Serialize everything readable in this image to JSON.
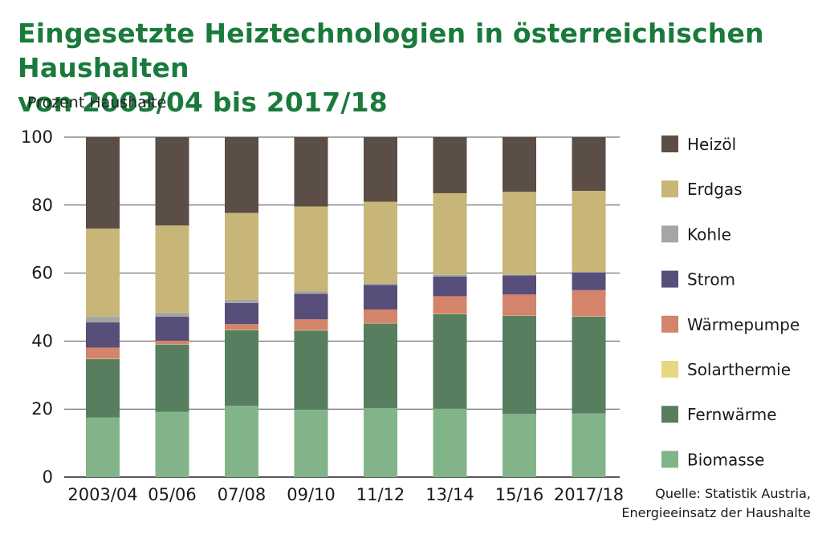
{
  "chart_data": {
    "type": "bar",
    "stacked": true,
    "title_line1": "Eingesetzte Heiztechnologien in österreichischen Haushalten",
    "title_line2": "von 2003/04 bis 2017/18",
    "ylabel": "Prozent Haushalte",
    "xlabel": "",
    "ylim": [
      0,
      100
    ],
    "yticks": [
      0,
      20,
      40,
      60,
      80,
      100
    ],
    "grid": true,
    "legend_position": "right",
    "categories": [
      "2003/04",
      "05/06",
      "07/08",
      "09/10",
      "11/12",
      "13/14",
      "15/16",
      "2017/18"
    ],
    "series": [
      {
        "name": "Biomasse",
        "color": "#82b48a",
        "values": [
          17.5,
          19.2,
          21.0,
          19.8,
          20.3,
          20.1,
          18.6,
          18.7
        ]
      },
      {
        "name": "Fernwärme",
        "color": "#567e5f",
        "values": [
          17.2,
          19.8,
          22.2,
          23.3,
          24.9,
          27.8,
          28.8,
          28.5
        ]
      },
      {
        "name": "Solarthermie",
        "color": "#e6d883",
        "values": [
          0.1,
          0.1,
          0.1,
          0.1,
          0.1,
          0.1,
          0.1,
          0.1
        ]
      },
      {
        "name": "Wärmepumpe",
        "color": "#d4846a",
        "values": [
          3.3,
          1.0,
          1.7,
          3.2,
          4.0,
          5.2,
          6.2,
          7.7
        ]
      },
      {
        "name": "Strom",
        "color": "#574e7a",
        "values": [
          7.4,
          7.1,
          6.2,
          7.5,
          7.2,
          5.8,
          5.6,
          5.2
        ]
      },
      {
        "name": "Kohle",
        "color": "#a5a6a3",
        "values": [
          1.7,
          1.2,
          1.0,
          0.8,
          0.5,
          0.5,
          0.3,
          0.2
        ]
      },
      {
        "name": "Erdgas",
        "color": "#c7b677",
        "values": [
          25.9,
          25.6,
          25.5,
          24.9,
          24.0,
          24.0,
          24.3,
          23.8
        ]
      },
      {
        "name": "Heizöl",
        "color": "#5b4e47",
        "values": [
          26.9,
          26.0,
          22.3,
          20.4,
          19.0,
          16.5,
          16.1,
          15.8
        ]
      }
    ],
    "legend_order": [
      "Heizöl",
      "Erdgas",
      "Kohle",
      "Strom",
      "Wärmepumpe",
      "Solarthermie",
      "Fernwärme",
      "Biomasse"
    ],
    "source_line1": "Quelle: Statistik Austria,",
    "source_line2": "Energieeinsatz der Haushalte"
  }
}
